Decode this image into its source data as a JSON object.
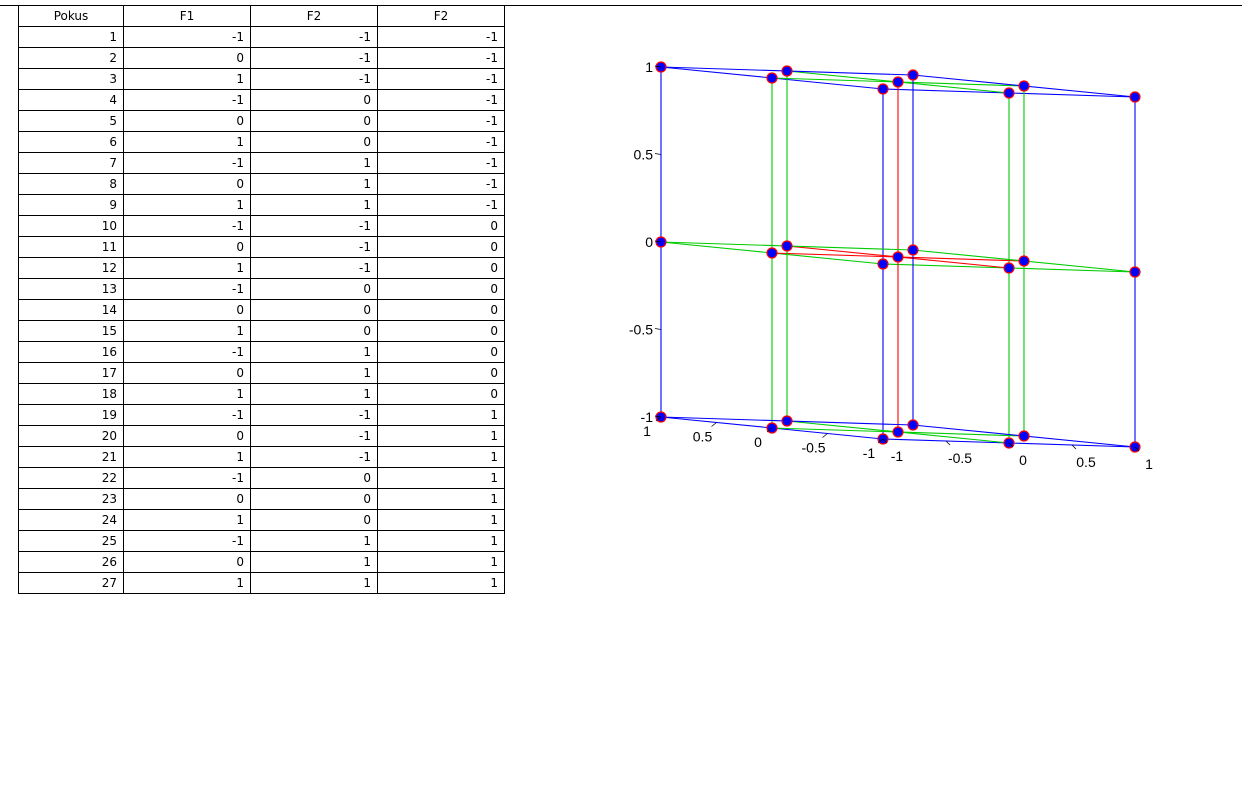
{
  "table": {
    "headers": [
      "Pokus",
      "F1",
      "F2",
      "F2"
    ],
    "rows": [
      [
        "1",
        "-1",
        "-1",
        "-1"
      ],
      [
        "2",
        "0",
        "-1",
        "-1"
      ],
      [
        "3",
        "1",
        "-1",
        "-1"
      ],
      [
        "4",
        "-1",
        "0",
        "-1"
      ],
      [
        "5",
        "0",
        "0",
        "-1"
      ],
      [
        "6",
        "1",
        "0",
        "-1"
      ],
      [
        "7",
        "-1",
        "1",
        "-1"
      ],
      [
        "8",
        "0",
        "1",
        "-1"
      ],
      [
        "9",
        "1",
        "1",
        "-1"
      ],
      [
        "10",
        "-1",
        "-1",
        "0"
      ],
      [
        "11",
        "0",
        "-1",
        "0"
      ],
      [
        "12",
        "1",
        "-1",
        "0"
      ],
      [
        "13",
        "-1",
        "0",
        "0"
      ],
      [
        "14",
        "0",
        "0",
        "0"
      ],
      [
        "15",
        "1",
        "0",
        "0"
      ],
      [
        "16",
        "-1",
        "1",
        "0"
      ],
      [
        "17",
        "0",
        "1",
        "0"
      ],
      [
        "18",
        "1",
        "1",
        "0"
      ],
      [
        "19",
        "-1",
        "-1",
        "1"
      ],
      [
        "20",
        "0",
        "-1",
        "1"
      ],
      [
        "21",
        "1",
        "-1",
        "1"
      ],
      [
        "22",
        "-1",
        "0",
        "1"
      ],
      [
        "23",
        "0",
        "0",
        "1"
      ],
      [
        "24",
        "1",
        "0",
        "1"
      ],
      [
        "25",
        "-1",
        "1",
        "1"
      ],
      [
        "26",
        "0",
        "1",
        "1"
      ],
      [
        "27",
        "1",
        "1",
        "1"
      ]
    ]
  },
  "chart_data": {
    "type": "scatter",
    "title": "",
    "points": [
      [
        -1,
        -1,
        -1
      ],
      [
        0,
        -1,
        -1
      ],
      [
        1,
        -1,
        -1
      ],
      [
        -1,
        0,
        -1
      ],
      [
        0,
        0,
        -1
      ],
      [
        1,
        0,
        -1
      ],
      [
        -1,
        1,
        -1
      ],
      [
        0,
        1,
        -1
      ],
      [
        1,
        1,
        -1
      ],
      [
        -1,
        -1,
        0
      ],
      [
        0,
        -1,
        0
      ],
      [
        1,
        -1,
        0
      ],
      [
        -1,
        0,
        0
      ],
      [
        0,
        0,
        0
      ],
      [
        1,
        0,
        0
      ],
      [
        -1,
        1,
        0
      ],
      [
        0,
        1,
        0
      ],
      [
        1,
        1,
        0
      ],
      [
        -1,
        -1,
        1
      ],
      [
        0,
        -1,
        1
      ],
      [
        1,
        -1,
        1
      ],
      [
        -1,
        0,
        1
      ],
      [
        0,
        0,
        1
      ],
      [
        1,
        0,
        1
      ],
      [
        -1,
        1,
        1
      ],
      [
        0,
        1,
        1
      ],
      [
        1,
        1,
        1
      ]
    ],
    "xlim": [
      -1,
      1
    ],
    "ylim": [
      -1,
      1
    ],
    "zlim": [
      -1,
      1
    ],
    "x_ticks": [
      "-1",
      "-0.5",
      "0",
      "0.5",
      "1"
    ],
    "y_ticks": [
      "-1",
      "-0.5",
      "0",
      "0.5",
      "1"
    ],
    "z_ticks": [
      "-1",
      "-0.5",
      "0",
      "0.5",
      "1"
    ],
    "marker_fill": "#0000ff",
    "marker_edge": "#ff0000",
    "edge_color_outer": "#0000ff",
    "edge_color_mid": "#00cc00",
    "edge_color_center": "#ff0000"
  }
}
